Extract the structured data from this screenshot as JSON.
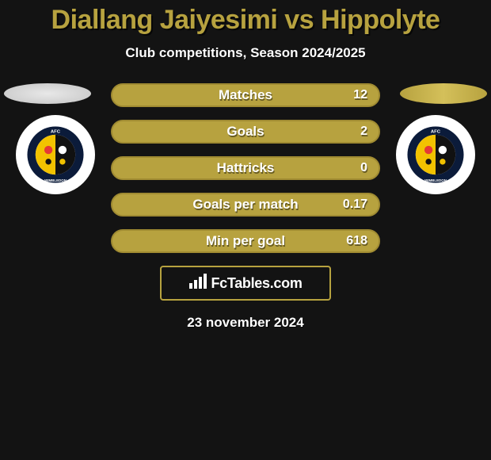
{
  "title": "Diallang Jaiyesimi vs Hippolyte",
  "title_color": "#b7a23f",
  "title_fontsize": 34,
  "subtitle": "Club competitions, Season 2024/2025",
  "background_color": "#131313",
  "ellipse_left_color": "#e0e0e0",
  "ellipse_right_color": "#c0aa46",
  "pill_colors": {
    "fill": "#b7a23f",
    "border": "#a08b32",
    "text": "#ffffff"
  },
  "stats": [
    {
      "label": "Matches",
      "value": "12"
    },
    {
      "label": "Goals",
      "value": "2"
    },
    {
      "label": "Hattricks",
      "value": "0"
    },
    {
      "label": "Goals per match",
      "value": "0.17"
    },
    {
      "label": "Min per goal",
      "value": "618"
    }
  ],
  "club_badge": {
    "ring_color": "#0b1b3a",
    "top_text": "AFC",
    "bottom_text": "WIMBLEDON",
    "inner_left": "#f2c200",
    "inner_right": "#111111",
    "accent_a": "#e53935",
    "accent_b": "#ffffff"
  },
  "footer": {
    "brand": "FcTables.com",
    "border_color": "#b7a23f",
    "icon": "bar-chart-icon"
  },
  "date": "23 november 2024"
}
